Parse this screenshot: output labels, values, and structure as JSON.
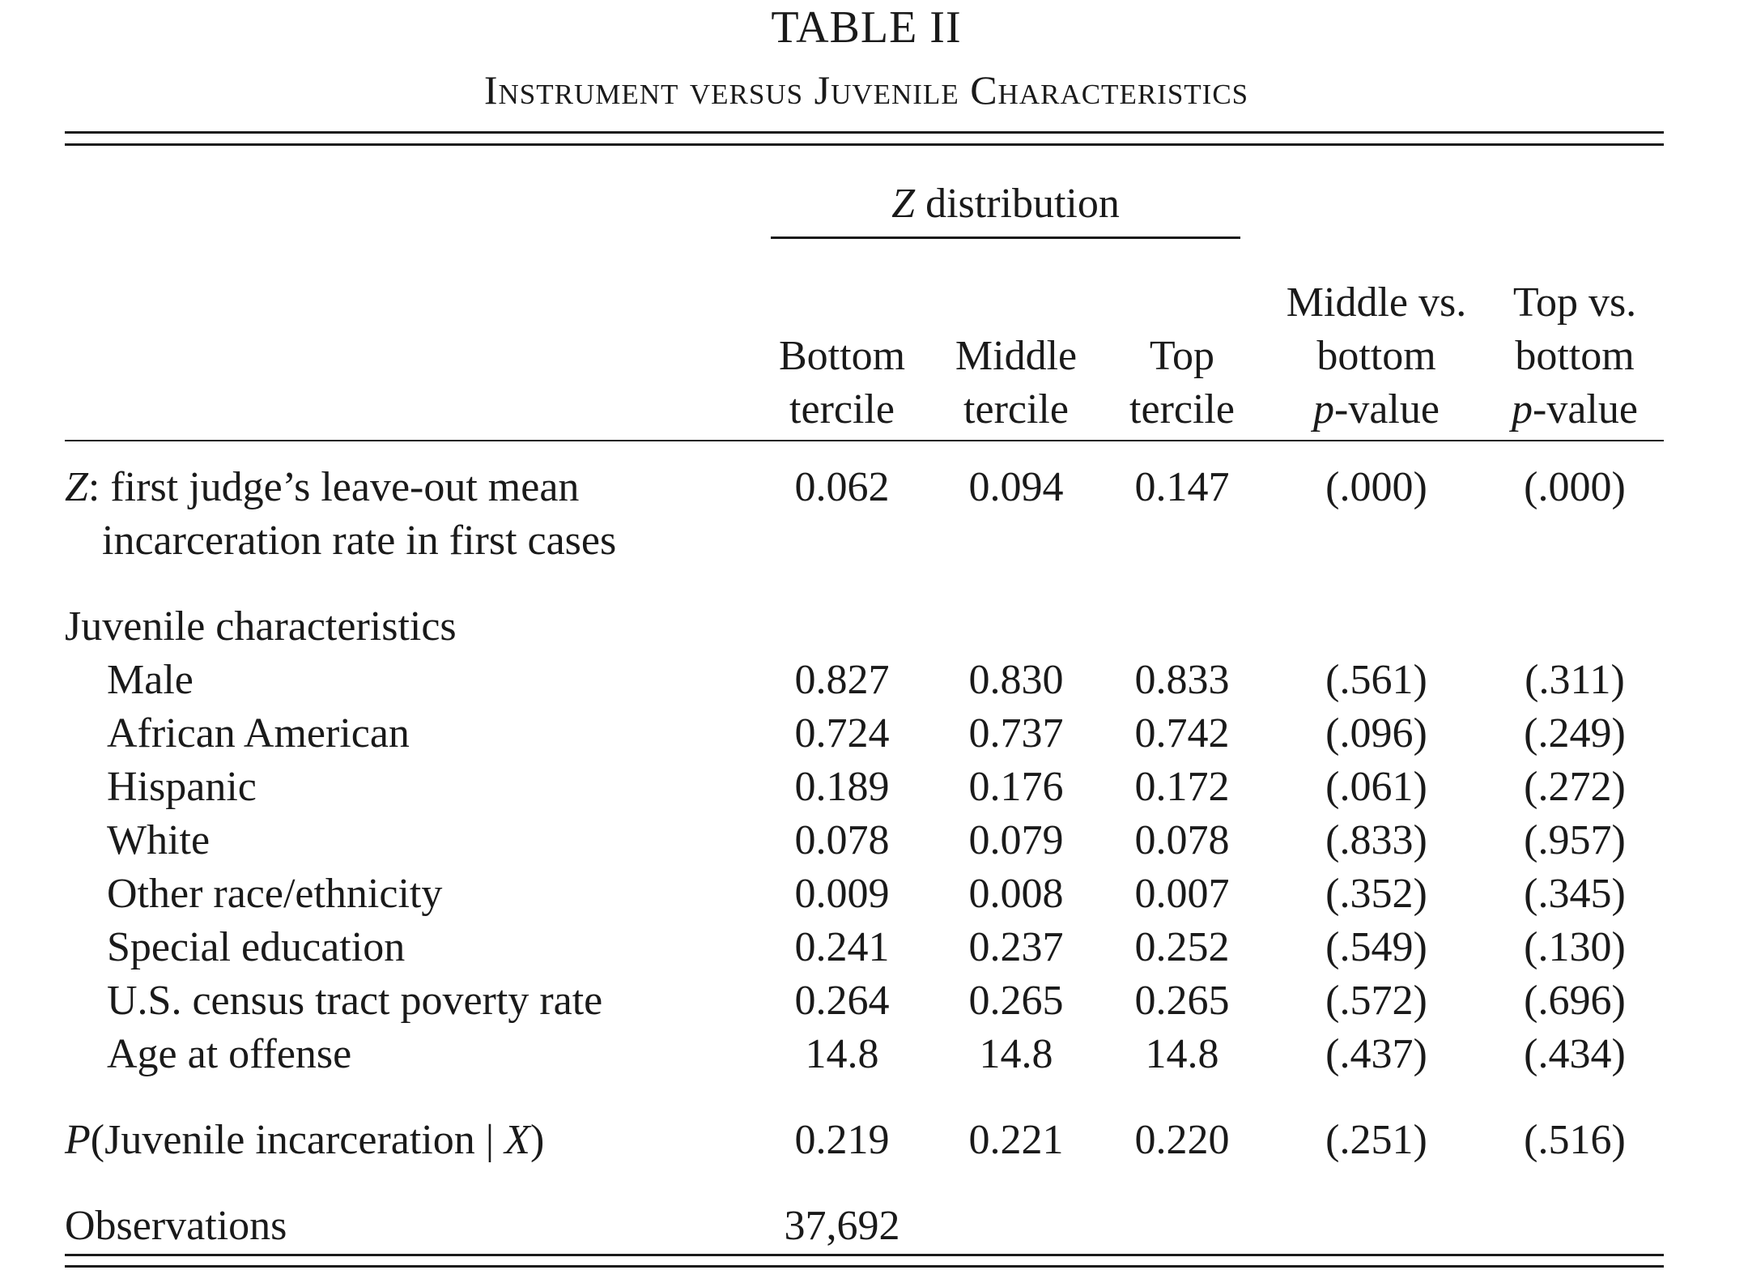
{
  "table": {
    "number": "TABLE II",
    "title": "Instrument versus Juvenile Characteristics",
    "spanner": "distribution",
    "spanner_var": "Z",
    "columns": [
      {
        "line1": "",
        "line2": "Bottom",
        "line3": "tercile"
      },
      {
        "line1": "",
        "line2": "Middle",
        "line3": "tercile"
      },
      {
        "line1": "",
        "line2": "Top",
        "line3": "tercile"
      },
      {
        "line1": "Middle vs.",
        "line2": "bottom",
        "line3_italic": "p",
        "line3": "-value"
      },
      {
        "line1": "Top vs.",
        "line2": "bottom",
        "line3_italic": "p",
        "line3": "-value"
      }
    ],
    "z_row": {
      "label_var": "Z",
      "label_rest": ": first judge’s leave-out mean",
      "label_line2": "incarceration rate in first cases",
      "values": [
        "0.062",
        "0.094",
        "0.147",
        "(.000)",
        "(.000)"
      ]
    },
    "section_header": "Juvenile characteristics",
    "rows": [
      {
        "label": "Male",
        "values": [
          "0.827",
          "0.830",
          "0.833",
          "(.561)",
          "(.311)"
        ]
      },
      {
        "label": "African American",
        "values": [
          "0.724",
          "0.737",
          "0.742",
          "(.096)",
          "(.249)"
        ]
      },
      {
        "label": "Hispanic",
        "values": [
          "0.189",
          "0.176",
          "0.172",
          "(.061)",
          "(.272)"
        ]
      },
      {
        "label": "White",
        "values": [
          "0.078",
          "0.079",
          "0.078",
          "(.833)",
          "(.957)"
        ]
      },
      {
        "label": "Other race/ethnicity",
        "values": [
          "0.009",
          "0.008",
          "0.007",
          "(.352)",
          "(.345)"
        ]
      },
      {
        "label": "Special education",
        "values": [
          "0.241",
          "0.237",
          "0.252",
          "(.549)",
          "(.130)"
        ]
      },
      {
        "label": "U.S. census tract poverty rate",
        "values": [
          "0.264",
          "0.265",
          "0.265",
          "(.572)",
          "(.696)"
        ]
      },
      {
        "label": "Age at offense",
        "values": [
          "14.8",
          "14.8",
          "14.8",
          "(.437)",
          "(.434)"
        ]
      }
    ],
    "p_row": {
      "label_p": "P",
      "label_mid": "(Juvenile incarceration | ",
      "label_x": "X",
      "label_end": ")",
      "values": [
        "0.219",
        "0.221",
        "0.220",
        "(.251)",
        "(.516)"
      ]
    },
    "observations": {
      "label": "Observations",
      "value": "37,692"
    }
  }
}
